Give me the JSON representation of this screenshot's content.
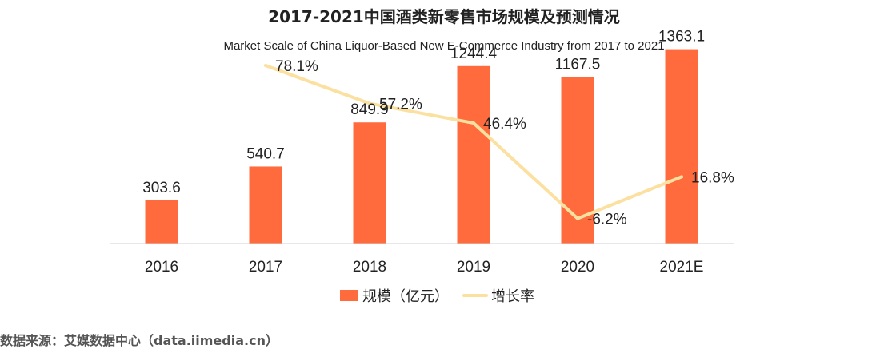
{
  "chart_data": {
    "type": "bar",
    "title": "2017-2021中国酒类新零售市场规模及预测情况",
    "subtitle": "Market Scale of China  Liquor-Based New E-Commerce Industry from 2017 to 2021",
    "categories": [
      "2016",
      "2017",
      "2018",
      "2019",
      "2020",
      "2021E"
    ],
    "series": [
      {
        "name": "规模（亿元）",
        "kind": "bar",
        "color": "#FF6B3D",
        "values": [
          303.6,
          540.7,
          849.9,
          1244.4,
          1167.5,
          1363.1
        ],
        "labels": [
          "303.6",
          "540.7",
          "849.9",
          "1244.4",
          "1167.5",
          "1363.1"
        ]
      },
      {
        "name": "增长率",
        "kind": "line",
        "color": "#FBE0A0",
        "values": [
          null,
          78.1,
          57.2,
          46.4,
          -6.2,
          16.8
        ],
        "labels": [
          "",
          "78.1%",
          "57.2%",
          "46.4%",
          "-6.2%",
          "16.8%"
        ]
      }
    ],
    "ylim": [
      0,
      1400
    ],
    "y2lim": [
      -20,
      90
    ],
    "grid": false,
    "legend_position": "bottom"
  },
  "source": "数据来源：艾媒数据中心（data.iimedia.cn）"
}
